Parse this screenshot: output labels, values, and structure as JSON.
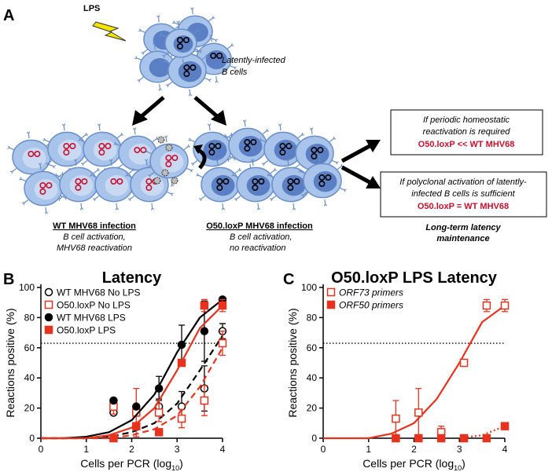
{
  "panel_labels": [
    "A",
    "B",
    "C"
  ],
  "panel_a": {
    "stimulus": "LPS",
    "latent_label": [
      "Latently-infected",
      "B cells"
    ],
    "wt_title": "WT MHV68 infection",
    "wt_desc": [
      "B cell activation,",
      "MHV68 reactivation"
    ],
    "mut_title": "O50.loxP MHV68 infection",
    "mut_desc": [
      "B cell activation,",
      "no reactivation"
    ],
    "box1": [
      "If periodic homeostatic",
      "reactivation is required",
      "O50.loxP << WT MHV68"
    ],
    "box2": [
      "If polyclonal activation of latently-",
      "infected B cells is sufficient",
      "O50.loxP = WT MHV68"
    ],
    "outcome": [
      "Long-term latency",
      "maintenance"
    ]
  },
  "chart_data": [
    {
      "type": "scatter",
      "title": "Latency",
      "x_label": [
        "Cells per PCR (log",
        "10",
        ")"
      ],
      "y_label": "Reactions positive (%)",
      "xlim": [
        0,
        4
      ],
      "ylim": [
        0,
        100
      ],
      "xticks": [
        0,
        1,
        2,
        3,
        4
      ],
      "yticks": [
        0,
        20,
        40,
        60,
        80,
        100
      ],
      "reference_line": 63,
      "fit_x": [
        0,
        0.5,
        1,
        1.5,
        2,
        2.5,
        3,
        3.5,
        4
      ],
      "series": [
        {
          "name": "WT MHV68 No LPS",
          "color": "#000000",
          "marker": "circle",
          "filled": false,
          "fit_style": "dashed",
          "x": [
            1.6,
            2.1,
            2.6,
            3.1,
            3.6,
            4
          ],
          "values": [
            17,
            8,
            21,
            21,
            33,
            71
          ],
          "errors": [
            0,
            0,
            5,
            10,
            15,
            5
          ],
          "fit_values": [
            0,
            0,
            0,
            1,
            4,
            10,
            23,
            45,
            68
          ]
        },
        {
          "name": "O50.loxP No LPS",
          "color": "#e8321e",
          "marker": "square",
          "filled": false,
          "fit_style": "dashed",
          "x": [
            1.6,
            2.1,
            2.6,
            3.1,
            3.6,
            4
          ],
          "values": [
            21,
            17,
            17,
            13,
            25,
            63
          ],
          "errors": [
            5,
            16,
            6,
            6,
            10,
            8
          ],
          "fit_values": [
            0,
            0,
            0,
            0,
            2,
            6,
            15,
            34,
            60
          ]
        },
        {
          "name": "WT MHV68 LPS",
          "color": "#000000",
          "marker": "circle",
          "filled": true,
          "fit_style": "solid",
          "x": [
            1.6,
            2.1,
            2.6,
            3.1,
            3.6,
            4
          ],
          "values": [
            25,
            21,
            33,
            62,
            71,
            92
          ],
          "errors": [
            0,
            0,
            8,
            13,
            20,
            0
          ],
          "fit_values": [
            0,
            0,
            1,
            4,
            12,
            29,
            57,
            80,
            92
          ]
        },
        {
          "name": "O50.loxP LPS",
          "color": "#e8321e",
          "marker": "square",
          "filled": true,
          "fit_style": "solid",
          "x": [
            1.6,
            2.1,
            2.6,
            3.1,
            3.6,
            4
          ],
          "values": [
            0,
            8,
            4,
            50,
            88,
            88
          ],
          "errors": [
            0,
            0,
            0,
            0,
            4,
            4
          ],
          "fit_values": [
            0,
            0,
            0,
            2,
            7,
            20,
            45,
            73,
            88
          ]
        }
      ]
    },
    {
      "type": "scatter",
      "title": "O50.loxP LPS Latency",
      "x_label": [
        "Cells per PCR (log",
        "10",
        ")"
      ],
      "y_label": "Reactions positive (%)",
      "xlim": [
        0,
        4
      ],
      "ylim": [
        0,
        100
      ],
      "xticks": [
        0,
        1,
        2,
        3,
        4
      ],
      "yticks": [
        0,
        20,
        40,
        60,
        80,
        100
      ],
      "reference_line": 63,
      "fit_x": [
        0,
        0.5,
        1,
        1.5,
        2,
        2.5,
        3,
        3.5,
        4
      ],
      "series": [
        {
          "name": "ORF73 primers",
          "color": "#e8321e",
          "marker": "square",
          "filled": false,
          "fit_style": "solid",
          "x": [
            1.6,
            2.1,
            2.6,
            3.1,
            3.6,
            4
          ],
          "values": [
            13,
            17,
            4,
            50,
            88,
            88
          ],
          "errors": [
            12,
            16,
            4,
            0,
            4,
            4
          ],
          "fit_values": [
            0,
            0,
            0,
            3,
            10,
            26,
            50,
            77,
            88
          ]
        },
        {
          "name": "ORF50 primers",
          "color": "#e8321e",
          "marker": "square",
          "filled": true,
          "fit_style": "dotted",
          "x": [
            1.6,
            2.1,
            2.6,
            3.1,
            3.6,
            4
          ],
          "values": [
            0,
            0,
            0,
            0,
            0,
            8
          ],
          "errors": [
            0,
            0,
            0,
            0,
            0,
            0
          ],
          "fit_values": [
            null,
            null,
            null,
            null,
            null,
            null,
            0,
            2,
            8
          ]
        }
      ]
    }
  ]
}
